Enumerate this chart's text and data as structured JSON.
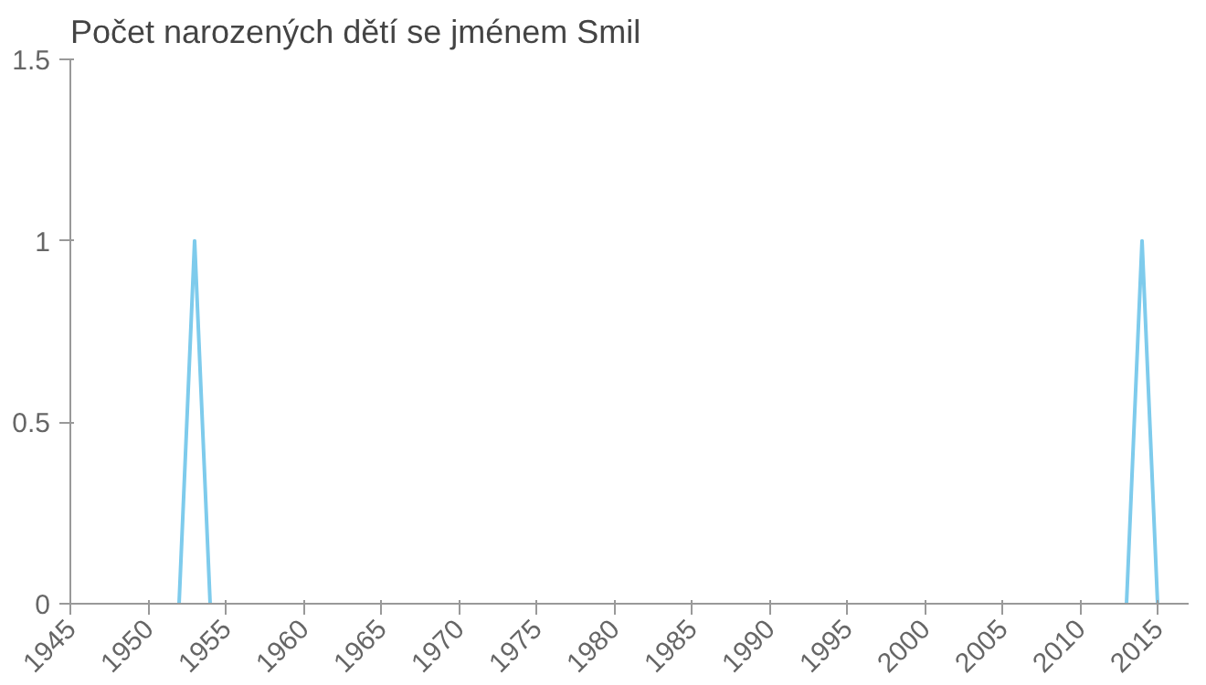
{
  "chart_data": {
    "type": "line",
    "title": "Počet narozených dětí se jménem Smil",
    "x": [
      1952,
      1953,
      1954,
      1984,
      2013,
      2014,
      2015
    ],
    "series": [
      {
        "color": "#7ecbec",
        "values": [
          0,
          1,
          0,
          null,
          0,
          1,
          0
        ]
      }
    ],
    "xlim": [
      1945,
      2017
    ],
    "xticks": [
      1945,
      1950,
      1955,
      1960,
      1965,
      1970,
      1975,
      1980,
      1985,
      1990,
      1995,
      2000,
      2005,
      2010,
      2015
    ],
    "ylim": [
      0,
      1.5
    ],
    "yticks": [
      0,
      0.5,
      1,
      1.5
    ],
    "grid": false,
    "marker": "none",
    "line_style": "solid"
  }
}
